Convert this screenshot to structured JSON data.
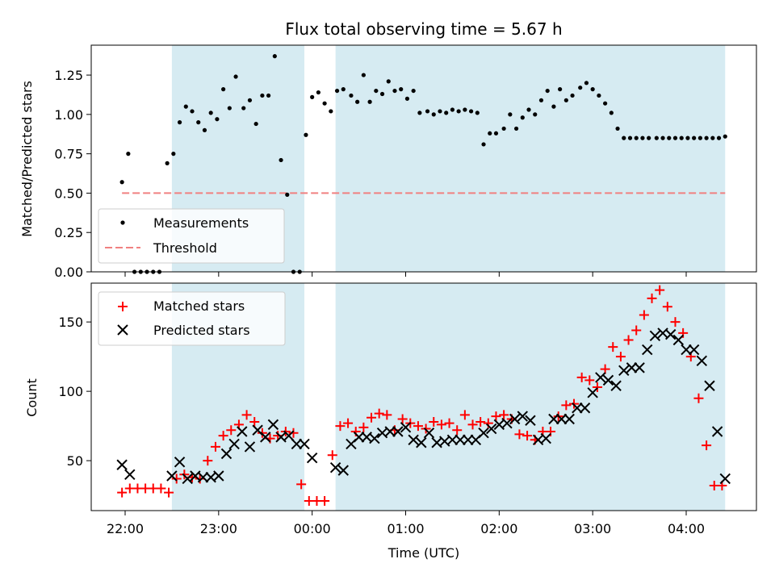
{
  "title": "Flux total observing time = 5.67 h",
  "colors": {
    "shade": "#add8e6",
    "measurement": "#000000",
    "threshold": "#f08080",
    "matched": "#ff0000",
    "predicted": "#000000"
  },
  "chart_data": [
    {
      "type": "scatter",
      "panel": "top",
      "ylabel": "Matched/Predicted stars",
      "xlabel": "",
      "ylim": [
        0,
        1.44
      ],
      "yticks": [
        0.0,
        0.25,
        0.5,
        0.75,
        1.0,
        1.25
      ],
      "ytick_labels": [
        "0.00",
        "0.25",
        "0.50",
        "0.75",
        "1.00",
        "1.25"
      ],
      "legend_placement": "lower-left",
      "shaded_intervals": [
        [
          "22:30",
          "23:55"
        ],
        [
          "00:15",
          "04:25"
        ]
      ],
      "threshold": {
        "name": "Threshold",
        "value": 0.5,
        "x_range": [
          "21:58",
          "04:25"
        ]
      },
      "series": [
        {
          "name": "Measurements",
          "x": [
            "21:58",
            "22:02",
            "22:06",
            "22:10",
            "22:14",
            "22:18",
            "22:22",
            "22:27",
            "22:31",
            "22:35",
            "22:39",
            "22:43",
            "22:47",
            "22:51",
            "22:55",
            "22:59",
            "23:03",
            "23:07",
            "23:11",
            "23:16",
            "23:20",
            "23:24",
            "23:28",
            "23:32",
            "23:36",
            "23:40",
            "23:44",
            "23:48",
            "23:52",
            "23:56",
            "00:00",
            "00:04",
            "00:08",
            "00:12",
            "00:16",
            "00:20",
            "00:25",
            "00:29",
            "00:33",
            "00:37",
            "00:41",
            "00:45",
            "00:49",
            "00:53",
            "00:57",
            "01:01",
            "01:05",
            "01:09",
            "01:14",
            "01:18",
            "01:22",
            "01:26",
            "01:30",
            "01:34",
            "01:38",
            "01:42",
            "01:46",
            "01:50",
            "01:54",
            "01:58",
            "02:03",
            "02:07",
            "02:11",
            "02:15",
            "02:19",
            "02:23",
            "02:27",
            "02:31",
            "02:35",
            "02:39",
            "02:43",
            "02:47",
            "02:52",
            "02:56",
            "03:00",
            "03:04",
            "03:08",
            "03:12",
            "03:16",
            "03:20",
            "03:24",
            "03:28",
            "03:32",
            "03:36",
            "03:41",
            "03:45",
            "03:49",
            "03:53",
            "03:57",
            "04:01",
            "04:05",
            "04:09",
            "04:13",
            "04:17",
            "04:21",
            "04:25"
          ],
          "y": [
            0.57,
            0.75,
            0.0,
            0.0,
            0.0,
            0.0,
            0.0,
            0.69,
            0.75,
            0.95,
            1.05,
            1.02,
            0.95,
            0.9,
            1.01,
            0.97,
            1.16,
            1.04,
            1.24,
            1.04,
            1.09,
            0.94,
            1.12,
            1.12,
            1.37,
            0.71,
            0.49,
            0.0,
            0.0,
            0.87,
            1.11,
            1.14,
            1.07,
            1.02,
            1.15,
            1.16,
            1.12,
            1.08,
            1.25,
            1.08,
            1.15,
            1.13,
            1.21,
            1.15,
            1.16,
            1.1,
            1.15,
            1.01,
            1.02,
            1.0,
            1.02,
            1.01,
            1.03,
            1.02,
            1.03,
            1.02,
            1.01,
            0.81,
            0.88,
            0.88,
            0.91,
            1.0,
            0.91,
            0.98,
            1.03,
            1.0,
            1.09,
            1.15,
            1.05,
            1.16,
            1.09,
            1.12,
            1.17,
            1.2,
            1.16,
            1.12,
            1.07,
            1.01,
            0.91,
            0.85,
            0.85,
            0.85,
            0.85,
            0.85,
            0.85,
            0.85,
            0.85,
            0.85,
            0.85,
            0.85,
            0.85,
            0.85,
            0.85,
            0.85,
            0.85,
            0.86
          ]
        }
      ]
    },
    {
      "type": "scatter",
      "panel": "bottom",
      "ylabel": "Count",
      "xlabel": "Time (UTC)",
      "ylim": [
        14,
        178
      ],
      "yticks": [
        50,
        100,
        150
      ],
      "ytick_labels": [
        "50",
        "100",
        "150"
      ],
      "xticks": [
        "22:00",
        "23:00",
        "00:00",
        "01:00",
        "02:00",
        "03:00",
        "04:00"
      ],
      "legend_placement": "upper-left",
      "shaded_intervals": [
        [
          "22:30",
          "23:55"
        ],
        [
          "00:15",
          "04:25"
        ]
      ],
      "series": [
        {
          "name": "Matched stars",
          "x": [
            "21:58",
            "22:03",
            "22:08",
            "22:13",
            "22:18",
            "22:23",
            "22:28",
            "22:33",
            "22:38",
            "22:43",
            "22:48",
            "22:53",
            "22:58",
            "23:03",
            "23:08",
            "23:13",
            "23:18",
            "23:23",
            "23:28",
            "23:33",
            "23:38",
            "23:43",
            "23:48",
            "23:53",
            "23:58",
            "00:03",
            "00:08",
            "00:13",
            "00:18",
            "00:23",
            "00:28",
            "00:33",
            "00:38",
            "00:43",
            "00:48",
            "00:53",
            "00:58",
            "01:03",
            "01:08",
            "01:13",
            "01:18",
            "01:23",
            "01:28",
            "01:33",
            "01:38",
            "01:43",
            "01:48",
            "01:53",
            "01:58",
            "02:03",
            "02:08",
            "02:13",
            "02:18",
            "02:23",
            "02:28",
            "02:33",
            "02:38",
            "02:43",
            "02:48",
            "02:53",
            "02:58",
            "03:03",
            "03:08",
            "03:13",
            "03:18",
            "03:23",
            "03:28",
            "03:33",
            "03:38",
            "03:43",
            "03:48",
            "03:53",
            "03:58",
            "04:03",
            "04:08",
            "04:13",
            "04:18",
            "04:23"
          ],
          "y": [
            27,
            30,
            30,
            30,
            30,
            30,
            27,
            37,
            40,
            38,
            37,
            50,
            60,
            68,
            72,
            76,
            83,
            78,
            70,
            66,
            68,
            71,
            70,
            33,
            21,
            21,
            21,
            54,
            75,
            77,
            71,
            74,
            81,
            84,
            83,
            72,
            80,
            77,
            75,
            73,
            78,
            76,
            77,
            72,
            83,
            76,
            78,
            77,
            82,
            83,
            80,
            69,
            68,
            65,
            71,
            71,
            82,
            90,
            91,
            110,
            108,
            103,
            116,
            132,
            125,
            137,
            144,
            155,
            167,
            173,
            161,
            150,
            142,
            125,
            95,
            61,
            32,
            32
          ]
        },
        {
          "name": "Predicted stars",
          "x": [
            "21:58",
            "22:03",
            "22:30",
            "22:35",
            "22:40",
            "22:45",
            "22:50",
            "22:55",
            "23:00",
            "23:05",
            "23:10",
            "23:15",
            "23:20",
            "23:25",
            "23:30",
            "23:35",
            "23:40",
            "23:45",
            "23:50",
            "23:55",
            "00:00",
            "00:15",
            "00:20",
            "00:25",
            "00:30",
            "00:35",
            "00:40",
            "00:45",
            "00:50",
            "00:55",
            "01:00",
            "01:05",
            "01:10",
            "01:15",
            "01:20",
            "01:25",
            "01:30",
            "01:35",
            "01:40",
            "01:45",
            "01:50",
            "01:55",
            "02:00",
            "02:05",
            "02:10",
            "02:15",
            "02:20",
            "02:25",
            "02:30",
            "02:35",
            "02:40",
            "02:45",
            "02:50",
            "02:55",
            "03:00",
            "03:05",
            "03:10",
            "03:15",
            "03:20",
            "03:25",
            "03:30",
            "03:35",
            "03:40",
            "03:45",
            "03:50",
            "03:55",
            "04:00",
            "04:05",
            "04:10",
            "04:15",
            "04:20",
            "04:25"
          ],
          "y": [
            47,
            40,
            39,
            49,
            37,
            39,
            38,
            38,
            39,
            55,
            62,
            71,
            60,
            72,
            67,
            76,
            67,
            68,
            62,
            62,
            52,
            45,
            43,
            62,
            67,
            67,
            66,
            70,
            71,
            71,
            74,
            65,
            63,
            70,
            63,
            64,
            65,
            65,
            65,
            65,
            70,
            73,
            76,
            77,
            80,
            82,
            79,
            65,
            66,
            80,
            80,
            80,
            88,
            88,
            99,
            110,
            108,
            104,
            115,
            117,
            117,
            130,
            140,
            142,
            141,
            137,
            130,
            130,
            122,
            104,
            71,
            37
          ]
        }
      ]
    }
  ]
}
